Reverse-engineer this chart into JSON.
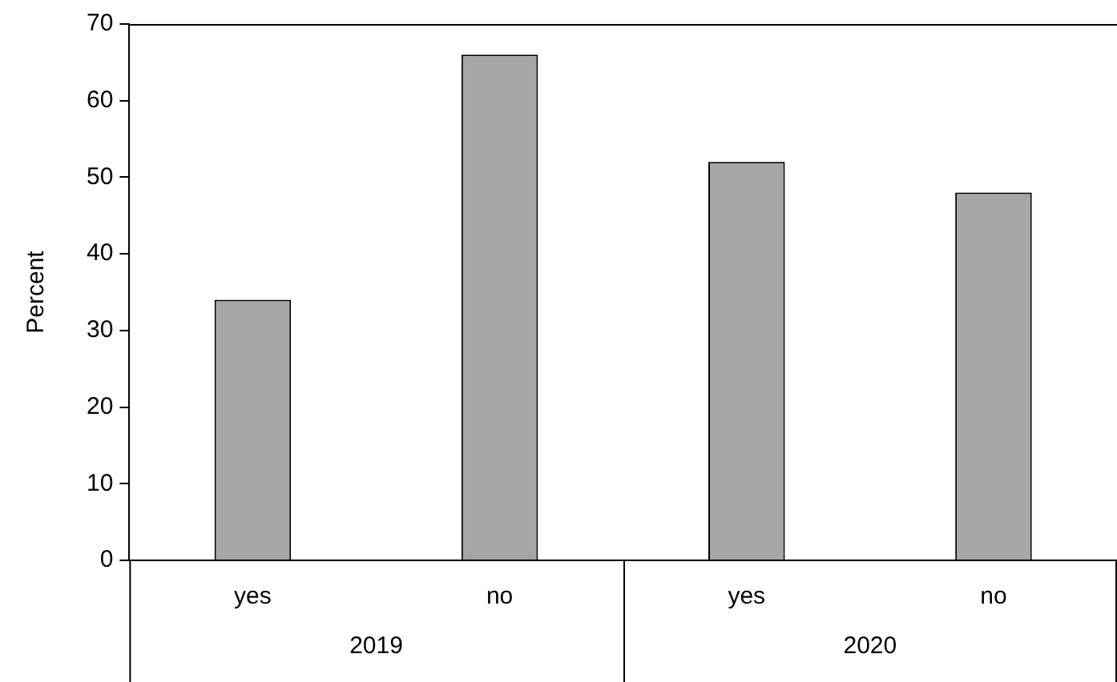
{
  "chart_data": {
    "type": "bar",
    "ylabel": "Percent",
    "categories": [
      "yes",
      "no",
      "yes",
      "no"
    ],
    "values": [
      34,
      66,
      52,
      48
    ],
    "color": "#a6a6a6",
    "ylim": [
      0,
      70
    ],
    "yticks": [
      0,
      10,
      20,
      30,
      40,
      50,
      60,
      70
    ],
    "grid": false,
    "legend": false,
    "annotations": [
      "2019",
      "2020"
    ]
  }
}
